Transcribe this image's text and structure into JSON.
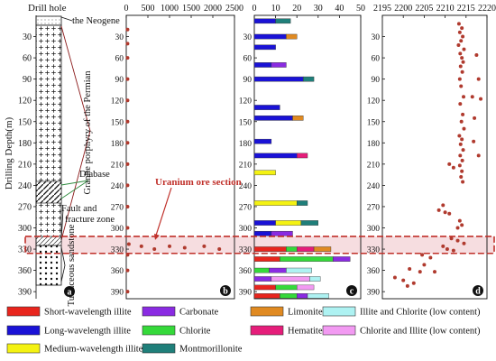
{
  "colors": {
    "short_illite": "#e8251d",
    "long_illite": "#1a12d6",
    "medium_illite": "#f4f212",
    "carbonate": "#8a2be2",
    "chlorite": "#35d93a",
    "montmorillonite": "#1f7f7a",
    "limonite": "#e08a22",
    "hematite": "#e51d7a",
    "illite_chlorite_low": "#aef2f2",
    "chlorite_illite_low": "#f29af2",
    "dot": "#b03a2e",
    "ore_box": "#c0302a",
    "ore_fill": "#f6dde0"
  },
  "column_a": {
    "title": "Drill hole",
    "ylabel": "Drilling Depth(m)",
    "labels": {
      "neogene": "the Neogene",
      "permian": "Granite porphyry of the Permian",
      "diabase": "Diabase",
      "fault": "Fault and fracture zone",
      "tuff": "Tuffaceous sandstone"
    },
    "panel_letter": "a"
  },
  "depth_ticks": [
    30,
    60,
    90,
    120,
    150,
    180,
    210,
    240,
    270,
    300,
    330,
    360,
    390
  ],
  "ore_section": {
    "label": "Uranium ore section",
    "depth_from": 312,
    "depth_to": 336
  },
  "panels": [
    {
      "id": "b",
      "letter": "b",
      "type": "scatter",
      "xticks": [
        "0",
        "500",
        "1000",
        "1500",
        "2000",
        "2500"
      ],
      "xlim": [
        0,
        2500
      ],
      "points": [
        {
          "x": 30,
          "y": 20
        },
        {
          "x": 30,
          "y": 40
        },
        {
          "x": 30,
          "y": 60
        },
        {
          "x": 30,
          "y": 90
        },
        {
          "x": 30,
          "y": 120
        },
        {
          "x": 30,
          "y": 150
        },
        {
          "x": 30,
          "y": 180
        },
        {
          "x": 30,
          "y": 210
        },
        {
          "x": 30,
          "y": 240
        },
        {
          "x": 30,
          "y": 270
        },
        {
          "x": 30,
          "y": 300
        },
        {
          "x": 60,
          "y": 323
        },
        {
          "x": 350,
          "y": 326
        },
        {
          "x": 650,
          "y": 330
        },
        {
          "x": 1000,
          "y": 326
        },
        {
          "x": 1350,
          "y": 328
        },
        {
          "x": 1800,
          "y": 326
        },
        {
          "x": 2150,
          "y": 330
        },
        {
          "x": 30,
          "y": 338
        },
        {
          "x": 30,
          "y": 360
        },
        {
          "x": 30,
          "y": 390
        }
      ]
    },
    {
      "id": "c",
      "letter": "c",
      "type": "stacked-bar",
      "xticks": [
        "0",
        "10",
        "20",
        "30",
        "40",
        "50"
      ],
      "xlim": [
        0,
        50
      ],
      "bars": [
        {
          "depth": 8,
          "segments": [
            {
              "m": "long_illite",
              "v": 10
            },
            {
              "m": "montmorillonite",
              "v": 7
            }
          ]
        },
        {
          "depth": 30,
          "segments": [
            {
              "m": "long_illite",
              "v": 15
            },
            {
              "m": "limonite",
              "v": 5
            }
          ]
        },
        {
          "depth": 45,
          "segments": [
            {
              "m": "long_illite",
              "v": 10
            }
          ]
        },
        {
          "depth": 70,
          "segments": [
            {
              "m": "long_illite",
              "v": 8
            },
            {
              "m": "carbonate",
              "v": 7
            }
          ]
        },
        {
          "depth": 90,
          "segments": [
            {
              "m": "long_illite",
              "v": 23
            },
            {
              "m": "montmorillonite",
              "v": 5
            }
          ]
        },
        {
          "depth": 130,
          "segments": [
            {
              "m": "long_illite",
              "v": 12
            }
          ]
        },
        {
          "depth": 145,
          "segments": [
            {
              "m": "long_illite",
              "v": 18
            },
            {
              "m": "limonite",
              "v": 5
            }
          ]
        },
        {
          "depth": 178,
          "segments": [
            {
              "m": "long_illite",
              "v": 8
            }
          ]
        },
        {
          "depth": 198,
          "segments": [
            {
              "m": "long_illite",
              "v": 20
            },
            {
              "m": "hematite",
              "v": 5
            }
          ]
        },
        {
          "depth": 222,
          "segments": [
            {
              "m": "medium_illite",
              "v": 10
            }
          ]
        },
        {
          "depth": 265,
          "segments": [
            {
              "m": "medium_illite",
              "v": 20
            },
            {
              "m": "montmorillonite",
              "v": 5
            }
          ]
        },
        {
          "depth": 293,
          "segments": [
            {
              "m": "long_illite",
              "v": 10
            },
            {
              "m": "medium_illite",
              "v": 12
            },
            {
              "m": "montmorillonite",
              "v": 8
            }
          ]
        },
        {
          "depth": 308,
          "segments": [
            {
              "m": "long_illite",
              "v": 8
            },
            {
              "m": "carbonate",
              "v": 10
            }
          ]
        },
        {
          "depth": 330,
          "segments": [
            {
              "m": "short_illite",
              "v": 15
            },
            {
              "m": "chlorite",
              "v": 5
            },
            {
              "m": "hematite",
              "v": 8
            },
            {
              "m": "limonite",
              "v": 8
            }
          ]
        },
        {
          "depth": 344,
          "segments": [
            {
              "m": "short_illite",
              "v": 12
            },
            {
              "m": "chlorite",
              "v": 25
            },
            {
              "m": "carbonate",
              "v": 8
            }
          ]
        },
        {
          "depth": 360,
          "segments": [
            {
              "m": "chlorite",
              "v": 7
            },
            {
              "m": "carbonate",
              "v": 8
            },
            {
              "m": "illite_chlorite_low",
              "v": 12
            }
          ]
        },
        {
          "depth": 372,
          "segments": [
            {
              "m": "carbonate",
              "v": 8
            },
            {
              "m": "chlorite_illite_low",
              "v": 18
            },
            {
              "m": "illite_chlorite_low",
              "v": 5
            }
          ]
        },
        {
          "depth": 384,
          "segments": [
            {
              "m": "short_illite",
              "v": 10
            },
            {
              "m": "chlorite",
              "v": 10
            },
            {
              "m": "chlorite_illite_low",
              "v": 8
            }
          ]
        },
        {
          "depth": 396,
          "segments": [
            {
              "m": "short_illite",
              "v": 12
            },
            {
              "m": "chlorite",
              "v": 8
            },
            {
              "m": "carbonate",
              "v": 5
            },
            {
              "m": "illite_chlorite_low",
              "v": 10
            }
          ]
        }
      ]
    },
    {
      "id": "d",
      "letter": "d",
      "type": "scatter",
      "xticks": [
        "2195",
        "2200",
        "2205",
        "2210",
        "2215",
        "2220"
      ],
      "xlim": [
        2195,
        2220
      ],
      "points": [
        {
          "x": 2213.3,
          "y": 12
        },
        {
          "x": 2214.0,
          "y": 18
        },
        {
          "x": 2213.5,
          "y": 24
        },
        {
          "x": 2214.2,
          "y": 30
        },
        {
          "x": 2213.8,
          "y": 36
        },
        {
          "x": 2213.2,
          "y": 42
        },
        {
          "x": 2214.5,
          "y": 48
        },
        {
          "x": 2213.6,
          "y": 54
        },
        {
          "x": 2217.5,
          "y": 56
        },
        {
          "x": 2214.0,
          "y": 60
        },
        {
          "x": 2214.3,
          "y": 66
        },
        {
          "x": 2213.7,
          "y": 72
        },
        {
          "x": 2214.1,
          "y": 80
        },
        {
          "x": 2213.5,
          "y": 90
        },
        {
          "x": 2218.0,
          "y": 90
        },
        {
          "x": 2213.8,
          "y": 100
        },
        {
          "x": 2214.4,
          "y": 115
        },
        {
          "x": 2216.5,
          "y": 115
        },
        {
          "x": 2218.5,
          "y": 118
        },
        {
          "x": 2213.6,
          "y": 125
        },
        {
          "x": 2214.2,
          "y": 140
        },
        {
          "x": 2217.0,
          "y": 145
        },
        {
          "x": 2213.9,
          "y": 150
        },
        {
          "x": 2214.5,
          "y": 160
        },
        {
          "x": 2213.4,
          "y": 170
        },
        {
          "x": 2214.0,
          "y": 175
        },
        {
          "x": 2216.8,
          "y": 178
        },
        {
          "x": 2213.7,
          "y": 182
        },
        {
          "x": 2214.3,
          "y": 190
        },
        {
          "x": 2213.6,
          "y": 198
        },
        {
          "x": 2218.0,
          "y": 198
        },
        {
          "x": 2214.1,
          "y": 205
        },
        {
          "x": 2211.0,
          "y": 210
        },
        {
          "x": 2212.0,
          "y": 215
        },
        {
          "x": 2213.5,
          "y": 212
        },
        {
          "x": 2214.0,
          "y": 220
        },
        {
          "x": 2213.8,
          "y": 228
        },
        {
          "x": 2214.2,
          "y": 235
        },
        {
          "x": 2209.5,
          "y": 268
        },
        {
          "x": 2208.5,
          "y": 275
        },
        {
          "x": 2210.0,
          "y": 278
        },
        {
          "x": 2211.0,
          "y": 280
        },
        {
          "x": 2213.5,
          "y": 290
        },
        {
          "x": 2214.0,
          "y": 296
        },
        {
          "x": 2213.0,
          "y": 300
        },
        {
          "x": 2211.5,
          "y": 315
        },
        {
          "x": 2213.0,
          "y": 318
        },
        {
          "x": 2214.5,
          "y": 322
        },
        {
          "x": 2209.5,
          "y": 326
        },
        {
          "x": 2210.5,
          "y": 330
        },
        {
          "x": 2212.0,
          "y": 332
        },
        {
          "x": 2204.5,
          "y": 338
        },
        {
          "x": 2206.5,
          "y": 342
        },
        {
          "x": 2205.0,
          "y": 352
        },
        {
          "x": 2201.5,
          "y": 358
        },
        {
          "x": 2204.0,
          "y": 362
        },
        {
          "x": 2207.5,
          "y": 362
        },
        {
          "x": 2198.0,
          "y": 370
        },
        {
          "x": 2200.0,
          "y": 374
        },
        {
          "x": 2202.5,
          "y": 378
        },
        {
          "x": 2201.0,
          "y": 382
        }
      ]
    }
  ],
  "legend": [
    {
      "key": "short_illite",
      "label": "Short-wavelength illite"
    },
    {
      "key": "carbonate",
      "label": "Carbonate"
    },
    {
      "key": "limonite",
      "label": "Limonite"
    },
    {
      "key": "illite_chlorite_low",
      "label": "Illite and Chlorite (low content)"
    },
    {
      "key": "long_illite",
      "label": "Long-wavelength illite"
    },
    {
      "key": "chlorite",
      "label": "Chlorite"
    },
    {
      "key": "hematite",
      "label": "Hematite"
    },
    {
      "key": "chlorite_illite_low",
      "label": "Chlorite and Illite (low content)"
    },
    {
      "key": "medium_illite",
      "label": "Medium-wavelength illite"
    },
    {
      "key": "montmorillonite",
      "label": "Montmorillonite"
    }
  ]
}
